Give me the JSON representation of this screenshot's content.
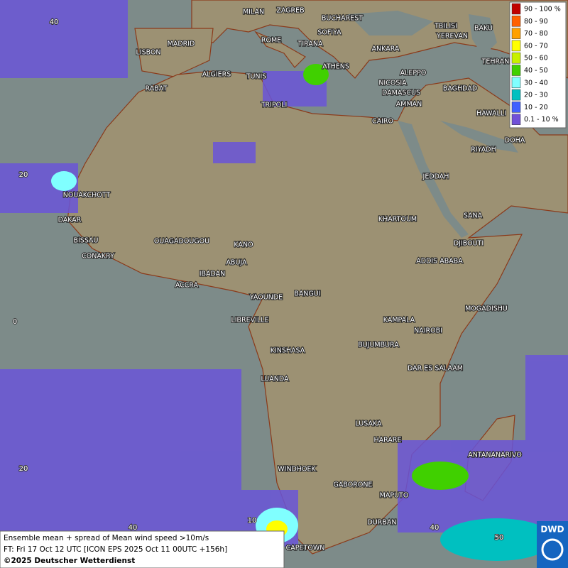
{
  "legend": [
    {
      "label": "90 - 100 %",
      "color": "#c00000"
    },
    {
      "label": "80 - 90",
      "color": "#ff6000"
    },
    {
      "label": "70 - 80",
      "color": "#ffa000"
    },
    {
      "label": "60 - 70",
      "color": "#ffff00"
    },
    {
      "label": "50 - 60",
      "color": "#c8f000"
    },
    {
      "label": "40 - 50",
      "color": "#40d000"
    },
    {
      "label": "30 - 40",
      "color": "#80ffff"
    },
    {
      "label": "20 - 30",
      "color": "#00c0c0"
    },
    {
      "label": "10 - 20",
      "color": "#4060ff"
    },
    {
      "label": "0.1 - 10 %",
      "color": "#7050d8"
    }
  ],
  "cities": [
    "MILAN",
    "ZAGREB",
    "BUCHAREST",
    "TBILISI",
    "BAKU",
    "SOFIYA",
    "YEREVAN",
    "ROME",
    "TIRANA",
    "ANKARA",
    "MADRID",
    "LISBON",
    "TEHRAN",
    "ATHENS",
    "ALGIERS",
    "TUNIS",
    "ALEPPO",
    "RABAT",
    "NICOSIA",
    "BAGHDAD",
    "TRIPOLI",
    "DAMASCUS",
    "AMMAN",
    "HAWALLI",
    "CAIRO",
    "DOHA",
    "RIYADH",
    "JEDDAH",
    "NOUAKCHOTT",
    "SANA",
    "DAKAR",
    "KHARTOUM",
    "BISSAU",
    "OUAGADOUGOU",
    "DJIBOUTI",
    "KANO",
    "CONAKRY",
    "ADDIS ABABA",
    "ABUJA",
    "IBADAN",
    "ACCRA",
    "YAOUNDE",
    "BANGUI",
    "MOGADISHU",
    "LIBREVILLE",
    "KAMPALA",
    "NAIROBI",
    "BUJUMBURA",
    "KINSHASA",
    "DAR ES SALAAM",
    "LUANDA",
    "LUSAKA",
    "HARARE",
    "ANTANANARIVO",
    "WINDHOEK",
    "GABORONE",
    "MAPUTO",
    "DURBAN",
    "CAPETOWN"
  ],
  "grid_labels": [
    40,
    20,
    0,
    20,
    40,
    10,
    40,
    50
  ],
  "footer": {
    "line1": "Ensemble mean + spread of Mean wind speed >10m/s",
    "line2": "FT: Fri 17 Oct 12 UTC [ICON EPS 2025 Oct 11 00UTC +156h]",
    "line3": "©2025 Deutscher Wetterdienst"
  },
  "logo": "DWD"
}
